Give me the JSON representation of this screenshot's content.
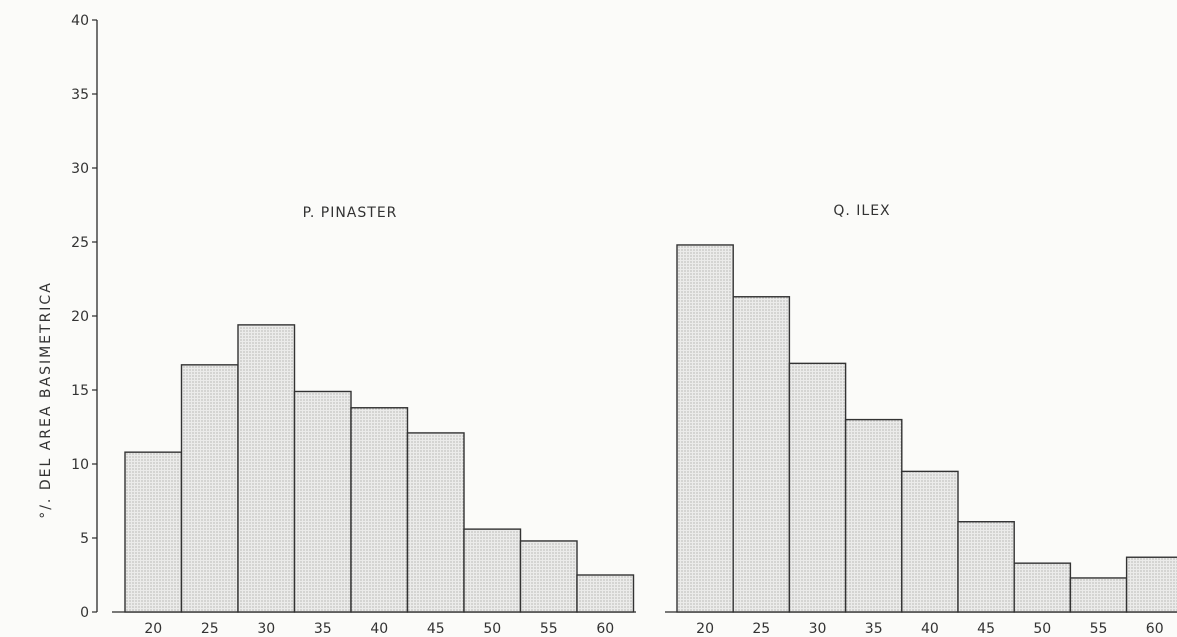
{
  "chart_data": {
    "type": "bar",
    "ylabel": "°/. DEL AREA BASIMETRICA",
    "ylim": [
      0,
      40
    ],
    "yticks": [
      "0",
      "5",
      "10",
      "15",
      "20",
      "25",
      "30",
      "35",
      "40"
    ],
    "grid": false,
    "panels": [
      {
        "title": "P. PINASTER",
        "categories": [
          "20",
          "25",
          "30",
          "35",
          "40",
          "45",
          "50",
          "55",
          "60"
        ],
        "values": [
          10.8,
          16.7,
          19.4,
          14.9,
          13.8,
          12.1,
          5.6,
          4.8,
          2.5
        ]
      },
      {
        "title": "Q. ILEX",
        "categories": [
          "20",
          "25",
          "30",
          "35",
          "40",
          "45",
          "50",
          "55",
          "60"
        ],
        "values": [
          24.8,
          21.3,
          16.8,
          13.0,
          9.5,
          6.1,
          3.3,
          2.3,
          3.7
        ]
      }
    ]
  }
}
